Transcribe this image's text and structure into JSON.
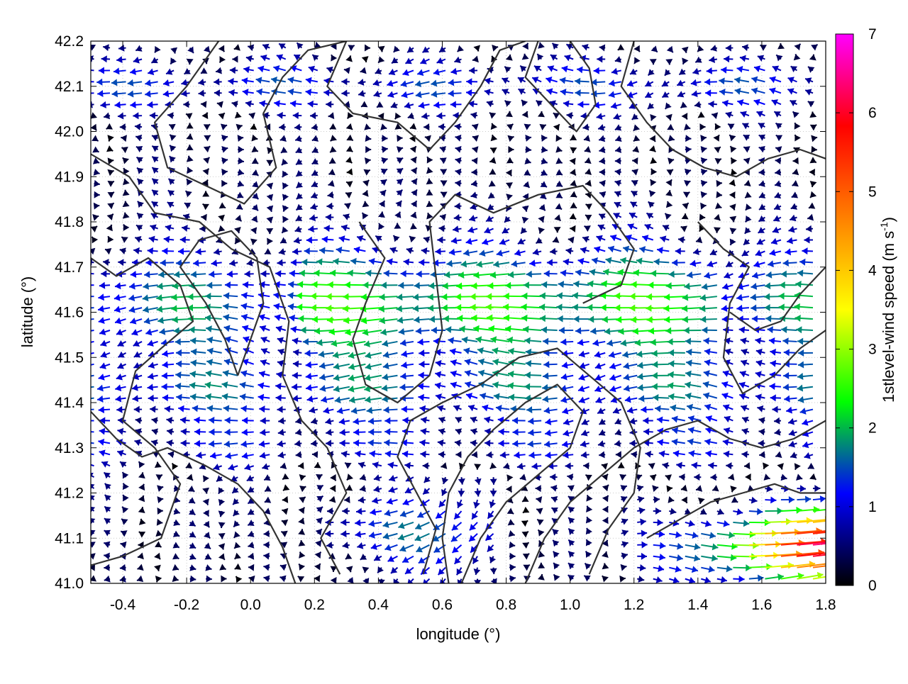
{
  "chart_data": {
    "type": "vector-field",
    "xlabel": "longitude (°)",
    "ylabel": "latitude (°)",
    "xlim": [
      -0.5,
      1.8
    ],
    "ylim": [
      41.0,
      42.2
    ],
    "x_ticks": [
      "-0.4",
      "-0.2",
      "0.0",
      "0.2",
      "0.4",
      "0.6",
      "0.8",
      "1.0",
      "1.2",
      "1.4",
      "1.6",
      "1.8"
    ],
    "y_ticks": [
      "41.0",
      "41.1",
      "41.2",
      "41.3",
      "41.4",
      "41.5",
      "41.6",
      "41.7",
      "41.8",
      "41.9",
      "42.0",
      "42.1",
      "42.2"
    ],
    "grid": true,
    "colorbar": {
      "label": "1stlevel-wind speed (m s",
      "label_exp": "-1",
      "label_close": ")",
      "range": [
        0,
        7
      ],
      "ticks": [
        "0",
        "1",
        "2",
        "3",
        "4",
        "5",
        "6",
        "7"
      ],
      "colors": [
        "#000000",
        "#0000ff",
        "#00ff00",
        "#ffff00",
        "#ff8000",
        "#ff0000",
        "#ff00ff"
      ]
    },
    "contours": [
      {
        "level": "terrain",
        "points": [
          [
            -0.5,
            41.72
          ],
          [
            -0.42,
            41.68
          ],
          [
            -0.32,
            41.72
          ],
          [
            -0.22,
            41.66
          ],
          [
            -0.18,
            41.58
          ],
          [
            -0.28,
            41.52
          ],
          [
            -0.36,
            41.47
          ],
          [
            -0.4,
            41.36
          ],
          [
            -0.3,
            41.3
          ],
          [
            -0.22,
            41.22
          ],
          [
            -0.28,
            41.1
          ],
          [
            -0.4,
            41.06
          ],
          [
            -0.5,
            41.04
          ]
        ]
      },
      {
        "level": "terrain",
        "points": [
          [
            -0.5,
            41.95
          ],
          [
            -0.38,
            41.9
          ],
          [
            -0.3,
            41.82
          ],
          [
            -0.16,
            41.8
          ],
          [
            -0.06,
            41.74
          ],
          [
            0.06,
            41.7
          ],
          [
            0.12,
            41.58
          ],
          [
            0.1,
            41.46
          ],
          [
            0.16,
            41.36
          ],
          [
            0.24,
            41.3
          ],
          [
            0.3,
            41.2
          ],
          [
            0.22,
            41.1
          ],
          [
            0.28,
            41.02
          ]
        ]
      },
      {
        "level": "terrain",
        "points": [
          [
            -0.1,
            42.2
          ],
          [
            -0.2,
            42.1
          ],
          [
            -0.3,
            42.02
          ],
          [
            -0.26,
            41.92
          ],
          [
            -0.14,
            41.88
          ],
          [
            -0.02,
            41.84
          ],
          [
            0.08,
            41.92
          ],
          [
            0.04,
            42.04
          ],
          [
            0.1,
            42.12
          ],
          [
            0.18,
            42.18
          ],
          [
            0.3,
            42.2
          ]
        ]
      },
      {
        "level": "terrain",
        "points": [
          [
            0.3,
            42.2
          ],
          [
            0.24,
            42.1
          ],
          [
            0.32,
            42.04
          ],
          [
            0.46,
            42.02
          ],
          [
            0.56,
            41.96
          ],
          [
            0.64,
            42.02
          ],
          [
            0.72,
            42.1
          ],
          [
            0.78,
            42.18
          ],
          [
            0.86,
            42.2
          ]
        ]
      },
      {
        "level": "terrain",
        "points": [
          [
            0.34,
            41.8
          ],
          [
            0.42,
            41.72
          ],
          [
            0.36,
            41.62
          ],
          [
            0.32,
            41.54
          ],
          [
            0.36,
            41.44
          ],
          [
            0.46,
            41.4
          ],
          [
            0.56,
            41.46
          ],
          [
            0.6,
            41.56
          ],
          [
            0.58,
            41.68
          ],
          [
            0.56,
            41.8
          ],
          [
            0.64,
            41.86
          ],
          [
            0.76,
            41.82
          ],
          [
            0.9,
            41.86
          ],
          [
            1.04,
            41.88
          ],
          [
            1.12,
            41.82
          ],
          [
            1.2,
            41.74
          ],
          [
            1.16,
            41.66
          ],
          [
            1.04,
            41.62
          ]
        ]
      },
      {
        "level": "terrain",
        "points": [
          [
            0.54,
            41.02
          ],
          [
            0.58,
            41.12
          ],
          [
            0.52,
            41.2
          ],
          [
            0.46,
            41.28
          ],
          [
            0.5,
            41.36
          ],
          [
            0.6,
            41.4
          ],
          [
            0.72,
            41.44
          ],
          [
            0.84,
            41.5
          ],
          [
            0.96,
            41.52
          ],
          [
            1.06,
            41.46
          ],
          [
            1.16,
            41.4
          ],
          [
            1.22,
            41.3
          ],
          [
            1.2,
            41.2
          ],
          [
            1.12,
            41.12
          ],
          [
            1.06,
            41.02
          ]
        ]
      },
      {
        "level": "terrain",
        "points": [
          [
            0.66,
            41.0
          ],
          [
            0.72,
            41.1
          ],
          [
            0.8,
            41.18
          ],
          [
            0.9,
            41.24
          ],
          [
            1.0,
            41.3
          ],
          [
            1.04,
            41.38
          ],
          [
            0.96,
            41.44
          ],
          [
            0.86,
            41.4
          ],
          [
            0.76,
            41.34
          ],
          [
            0.68,
            41.28
          ],
          [
            0.62,
            41.2
          ],
          [
            0.6,
            41.1
          ],
          [
            0.62,
            41.0
          ]
        ]
      },
      {
        "level": "terrain",
        "points": [
          [
            0.86,
            41.0
          ],
          [
            0.92,
            41.1
          ],
          [
            1.0,
            41.18
          ],
          [
            1.1,
            41.24
          ],
          [
            1.2,
            41.3
          ],
          [
            1.3,
            41.34
          ],
          [
            1.4,
            41.36
          ],
          [
            1.5,
            41.32
          ],
          [
            1.6,
            41.3
          ],
          [
            1.7,
            41.32
          ],
          [
            1.8,
            41.36
          ]
        ]
      },
      {
        "level": "terrain",
        "points": [
          [
            1.24,
            41.1
          ],
          [
            1.34,
            41.14
          ],
          [
            1.44,
            41.18
          ],
          [
            1.54,
            41.2
          ],
          [
            1.64,
            41.22
          ],
          [
            1.72,
            41.2
          ],
          [
            1.8,
            41.2
          ]
        ]
      },
      {
        "level": "terrain",
        "points": [
          [
            1.2,
            42.2
          ],
          [
            1.16,
            42.1
          ],
          [
            1.24,
            42.02
          ],
          [
            1.32,
            41.96
          ],
          [
            1.42,
            41.92
          ],
          [
            1.52,
            41.9
          ],
          [
            1.62,
            41.94
          ],
          [
            1.72,
            41.96
          ],
          [
            1.8,
            41.94
          ]
        ]
      },
      {
        "level": "terrain",
        "points": [
          [
            1.4,
            41.8
          ],
          [
            1.48,
            41.74
          ],
          [
            1.56,
            41.7
          ],
          [
            1.5,
            41.62
          ],
          [
            1.48,
            41.5
          ],
          [
            1.54,
            41.42
          ],
          [
            1.64,
            41.46
          ],
          [
            1.72,
            41.52
          ],
          [
            1.8,
            41.56
          ]
        ]
      },
      {
        "level": "terrain",
        "points": [
          [
            0.9,
            42.2
          ],
          [
            0.86,
            42.12
          ],
          [
            0.94,
            42.06
          ],
          [
            1.02,
            42.0
          ],
          [
            1.08,
            42.06
          ],
          [
            1.06,
            42.14
          ],
          [
            1.0,
            42.2
          ]
        ]
      },
      {
        "level": "terrain",
        "points": [
          [
            -0.5,
            41.38
          ],
          [
            -0.42,
            41.32
          ],
          [
            -0.34,
            41.28
          ],
          [
            -0.26,
            41.3
          ],
          [
            -0.14,
            41.26
          ],
          [
            -0.04,
            41.22
          ],
          [
            0.04,
            41.16
          ],
          [
            0.1,
            41.08
          ],
          [
            0.14,
            41.0
          ]
        ]
      },
      {
        "level": "terrain",
        "points": [
          [
            -0.04,
            41.46
          ],
          [
            0.0,
            41.54
          ],
          [
            0.04,
            41.62
          ],
          [
            0.02,
            41.72
          ],
          [
            -0.06,
            41.78
          ],
          [
            -0.16,
            41.76
          ],
          [
            -0.22,
            41.7
          ],
          [
            -0.14,
            41.62
          ],
          [
            -0.08,
            41.54
          ],
          [
            -0.04,
            41.46
          ]
        ]
      },
      {
        "level": "terrain",
        "points": [
          [
            1.5,
            41.6
          ],
          [
            1.58,
            41.56
          ],
          [
            1.66,
            41.58
          ],
          [
            1.72,
            41.64
          ],
          [
            1.8,
            41.7
          ]
        ]
      }
    ]
  }
}
